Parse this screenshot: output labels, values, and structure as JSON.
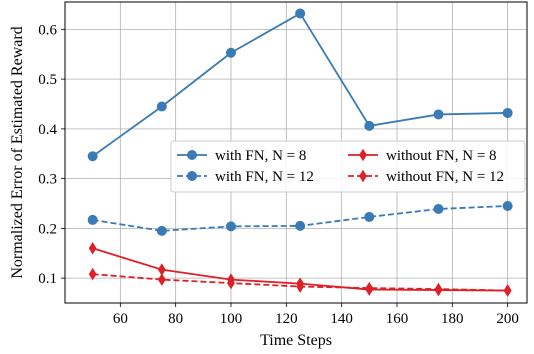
{
  "chart_data": {
    "type": "line",
    "title": "",
    "xlabel": "Time Steps",
    "ylabel": "Normalized Error of Estimated Reward",
    "xlim": [
      40,
      207
    ],
    "ylim": [
      0.05,
      0.655
    ],
    "xticks": [
      60,
      80,
      100,
      120,
      140,
      160,
      180,
      200
    ],
    "yticks": [
      0.1,
      0.2,
      0.3,
      0.4,
      0.5,
      0.6
    ],
    "grid": true,
    "legend_position": "center-right",
    "x": [
      50,
      75,
      100,
      125,
      150,
      175,
      200
    ],
    "series": [
      {
        "name": "with FN, N = 8",
        "values": [
          0.345,
          0.445,
          0.553,
          0.632,
          0.406,
          0.429,
          0.432
        ],
        "color": "#3a7ab5",
        "linestyle": "solid",
        "marker": "circle"
      },
      {
        "name": "with FN, N = 12",
        "values": [
          0.217,
          0.195,
          0.204,
          0.205,
          0.223,
          0.239,
          0.245
        ],
        "color": "#3a7ab5",
        "linestyle": "dashed",
        "marker": "circle"
      },
      {
        "name": "without FN, N = 8",
        "values": [
          0.16,
          0.117,
          0.097,
          0.089,
          0.077,
          0.076,
          0.075
        ],
        "color": "#de2027",
        "linestyle": "solid",
        "marker": "diamond"
      },
      {
        "name": "without FN, N = 12",
        "values": [
          0.108,
          0.097,
          0.09,
          0.083,
          0.08,
          0.078,
          0.075
        ],
        "color": "#de2027",
        "linestyle": "dashed",
        "marker": "diamond"
      }
    ]
  }
}
